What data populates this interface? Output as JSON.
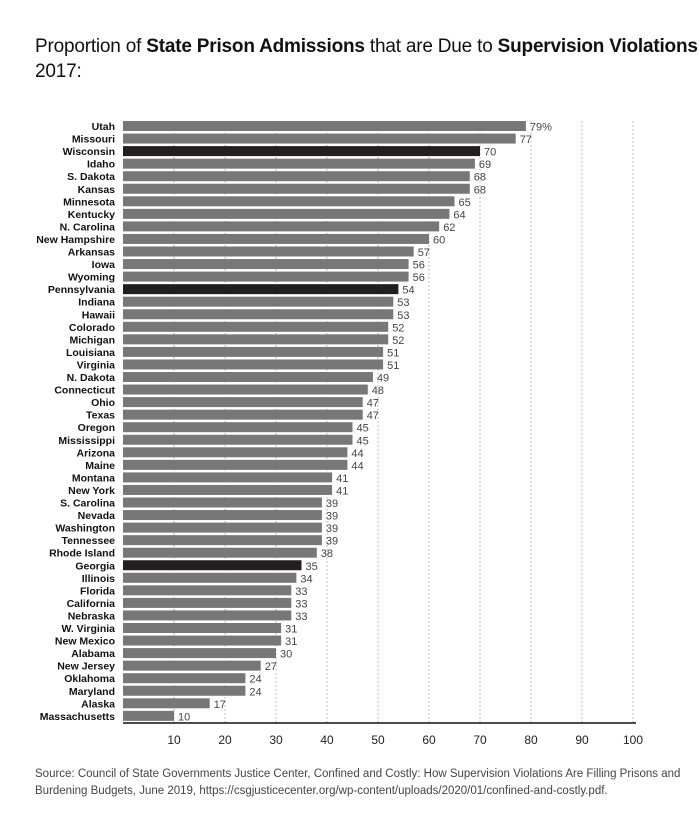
{
  "chart_data": {
    "type": "bar",
    "orientation": "horizontal",
    "title_parts": [
      {
        "text": "Proportion of ",
        "bold": false
      },
      {
        "text": "State Prison Admissions",
        "bold": true
      },
      {
        "text": " that are Due to ",
        "bold": false
      },
      {
        "text": "Supervision Violations",
        "bold": true
      }
    ],
    "subtitle": "2017:",
    "categories": [
      "Utah",
      "Missouri",
      "Wisconsin",
      "Idaho",
      "S. Dakota",
      "Kansas",
      "Minnesota",
      "Kentucky",
      "N. Carolina",
      "New Hampshire",
      "Arkansas",
      "Iowa",
      "Wyoming",
      "Pennsylvania",
      "Indiana",
      "Hawaii",
      "Colorado",
      "Michigan",
      "Louisiana",
      "Virginia",
      "N. Dakota",
      "Connecticut",
      "Ohio",
      "Texas",
      "Oregon",
      "Mississippi",
      "Arizona",
      "Maine",
      "Montana",
      "New York",
      "S. Carolina",
      "Nevada",
      "Washington",
      "Tennessee",
      "Rhode Island",
      "Georgia",
      "Illinois",
      "Florida",
      "California",
      "Nebraska",
      "W. Virginia",
      "New Mexico",
      "Alabama",
      "New Jersey",
      "Oklahoma",
      "Maryland",
      "Alaska",
      "Massachusetts"
    ],
    "values": [
      79,
      77,
      70,
      69,
      68,
      68,
      65,
      64,
      62,
      60,
      57,
      56,
      56,
      54,
      53,
      53,
      52,
      52,
      51,
      51,
      49,
      48,
      47,
      47,
      45,
      45,
      44,
      44,
      41,
      41,
      39,
      39,
      39,
      39,
      38,
      35,
      34,
      33,
      33,
      33,
      31,
      31,
      30,
      27,
      24,
      24,
      17,
      10
    ],
    "first_label_suffix": "%",
    "highlighted": [
      "Wisconsin",
      "Pennsylvania",
      "Georgia"
    ],
    "xlim": [
      0,
      100
    ],
    "xticks": [
      10,
      20,
      30,
      40,
      50,
      60,
      70,
      80,
      90,
      100
    ],
    "grid": "vertical dotted",
    "colors": {
      "bar": "#777777",
      "highlight": "#231f20",
      "grid": "#aaaaaa",
      "axis": "#111111"
    },
    "source": "Source: Council of State Governments Justice Center, Confined and Costly: How Supervision Violations Are Filling Prisons and Burdening Budgets, June 2019, https://csgjusticecenter.org/wp-content/uploads/2020/01/confined-and-costly.pdf."
  }
}
